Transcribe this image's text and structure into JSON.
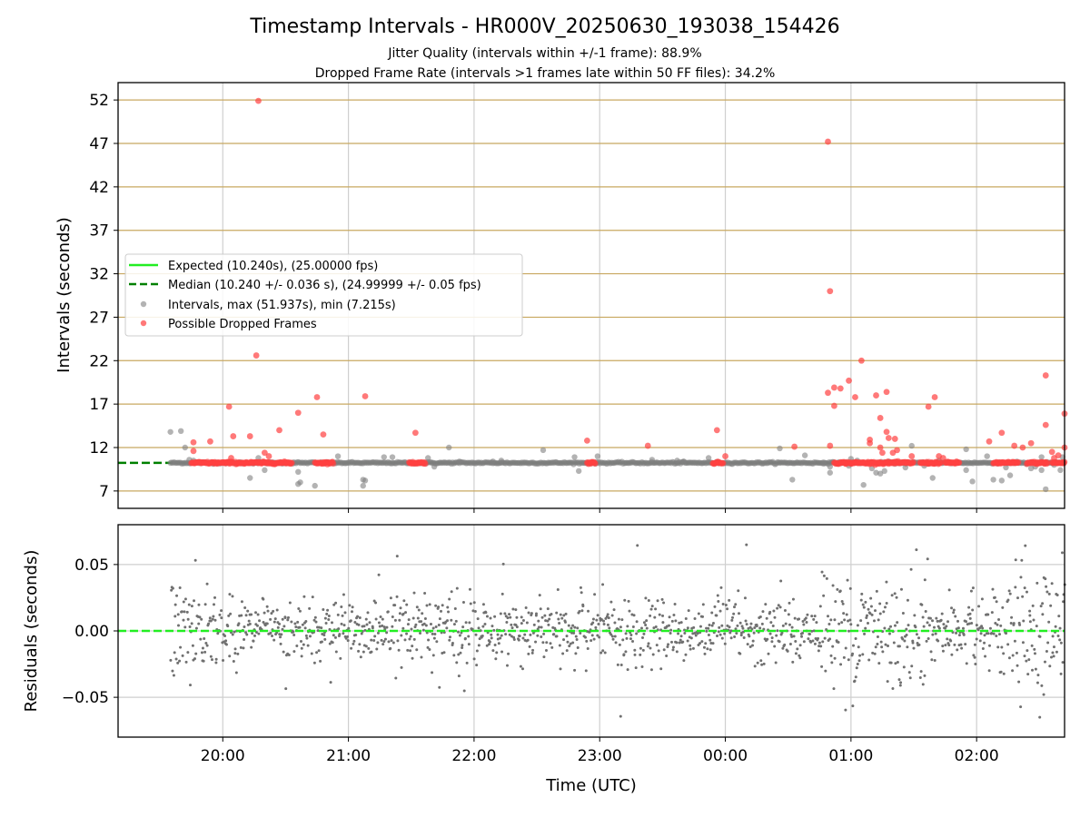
{
  "chart_data": [
    {
      "type": "scatter",
      "title": "Timestamp Intervals - HR000V_20250630_193038_154426",
      "subtitle_1": "Jitter Quality (intervals within +/-1 frame): 88.9%",
      "subtitle_2": "Dropped Frame Rate (intervals >1 frames late within 50 FF files): 34.2%",
      "ylabel": "Intervals (seconds)",
      "xlabel": "",
      "x_axis_type": "time",
      "xlim": [
        "19:10",
        "02:42"
      ],
      "ylim": [
        5,
        54
      ],
      "y_ticks": [
        "7",
        "12",
        "17",
        "22",
        "27",
        "32",
        "37",
        "42",
        "47",
        "52"
      ],
      "grid": {
        "horizontal": "on",
        "horizontal_color": "#c8a860",
        "vertical": "on"
      },
      "legend_position": "center-left",
      "legend": [
        "Expected (10.240s), (25.00000 fps)",
        "Median (10.240 +/- 0.036 s), (24.99999 +/- 0.05 fps)",
        "Intervals, max (51.937s), min (7.215s)",
        "Possible Dropped Frames"
      ],
      "expected_interval": 10.24,
      "median_interval": 10.24,
      "intervals_max": 51.937,
      "intervals_min": 7.215,
      "interval_points_range": [
        "19:35",
        "02:45"
      ],
      "series": [
        {
          "name": "Intervals, max (51.937s), min (7.215s)",
          "color": "#808080",
          "points": [
            [
              "19:35",
              13.8
            ],
            [
              "19:40",
              13.9
            ],
            [
              "19:42",
              12.0
            ],
            [
              "19:44",
              10.6
            ],
            [
              "19:46",
              10.5
            ],
            [
              "20:13",
              8.5
            ],
            [
              "20:17",
              10.8
            ],
            [
              "20:20",
              9.4
            ],
            [
              "20:36",
              7.8
            ],
            [
              "20:37",
              8.0
            ],
            [
              "20:36",
              9.2
            ],
            [
              "20:44",
              7.6
            ],
            [
              "20:55",
              11.0
            ],
            [
              "21:07",
              7.6
            ],
            [
              "21:07",
              8.3
            ],
            [
              "21:08",
              8.2
            ],
            [
              "21:17",
              10.9
            ],
            [
              "21:21",
              10.9
            ],
            [
              "21:38",
              10.8
            ],
            [
              "21:41",
              9.8
            ],
            [
              "21:48",
              12.0
            ],
            [
              "21:53",
              10.4
            ],
            [
              "22:09",
              10.4
            ],
            [
              "22:13",
              10.5
            ],
            [
              "22:33",
              11.7
            ],
            [
              "22:48",
              10.9
            ],
            [
              "22:50",
              9.3
            ],
            [
              "22:59",
              11.0
            ],
            [
              "23:25",
              10.6
            ],
            [
              "23:37",
              10.5
            ],
            [
              "23:40",
              10.4
            ],
            [
              "23:52",
              10.8
            ],
            [
              "23:56",
              10.3
            ],
            [
              "00:26",
              11.9
            ],
            [
              "00:32",
              8.3
            ],
            [
              "00:38",
              11.1
            ],
            [
              "00:47",
              10.3
            ],
            [
              "00:50",
              9.1
            ],
            [
              "00:50",
              9.8
            ],
            [
              "00:54",
              10.3
            ],
            [
              "00:59",
              9.9
            ],
            [
              "01:00",
              10.7
            ],
            [
              "01:03",
              10.5
            ],
            [
              "01:06",
              7.7
            ],
            [
              "01:10",
              9.6
            ],
            [
              "01:12",
              9.1
            ],
            [
              "01:14",
              9.0
            ],
            [
              "01:16",
              9.3
            ],
            [
              "01:18",
              10.4
            ],
            [
              "01:22",
              10.3
            ],
            [
              "01:26",
              9.7
            ],
            [
              "01:29",
              12.2
            ],
            [
              "01:35",
              9.9
            ],
            [
              "01:39",
              8.5
            ],
            [
              "01:42",
              10.5
            ],
            [
              "01:55",
              9.4
            ],
            [
              "01:55",
              11.8
            ],
            [
              "01:58",
              8.1
            ],
            [
              "02:05",
              11.0
            ],
            [
              "02:08",
              8.3
            ],
            [
              "02:12",
              8.2
            ],
            [
              "02:14",
              9.7
            ],
            [
              "02:16",
              8.8
            ],
            [
              "02:18",
              10.2
            ],
            [
              "02:24",
              10.1
            ],
            [
              "02:26",
              9.6
            ],
            [
              "02:28",
              9.8
            ],
            [
              "02:31",
              9.4
            ],
            [
              "02:31",
              10.9
            ],
            [
              "02:33",
              7.2
            ],
            [
              "02:37",
              10.0
            ],
            [
              "02:40",
              9.4
            ],
            [
              "02:41",
              10.9
            ]
          ]
        },
        {
          "name": "Possible Dropped Frames",
          "color": "#ff4040",
          "clusters": [
            [
              "19:45",
              "20:05"
            ],
            [
              "20:06",
              "20:33"
            ],
            [
              "20:44",
              "20:53"
            ],
            [
              "21:29",
              "21:37"
            ],
            [
              "22:54",
              "22:58"
            ],
            [
              "23:54",
              "23:59"
            ],
            [
              "00:52",
              "01:30"
            ],
            [
              "01:33",
              "01:43"
            ],
            [
              "01:45",
              "01:52"
            ],
            [
              "02:08",
              "02:20"
            ],
            [
              "02:24",
              "02:34"
            ],
            [
              "02:36",
              "02:42"
            ]
          ],
          "points": [
            [
              "19:46",
              11.6
            ],
            [
              "19:46",
              12.6
            ],
            [
              "19:54",
              12.7
            ],
            [
              "20:03",
              16.7
            ],
            [
              "20:04",
              10.8
            ],
            [
              "20:05",
              13.3
            ],
            [
              "20:13",
              13.3
            ],
            [
              "20:16",
              22.6
            ],
            [
              "20:17",
              51.9
            ],
            [
              "20:20",
              11.4
            ],
            [
              "20:22",
              11.0
            ],
            [
              "20:27",
              14.0
            ],
            [
              "20:36",
              16.0
            ],
            [
              "20:45",
              17.8
            ],
            [
              "20:48",
              13.5
            ],
            [
              "21:08",
              17.9
            ],
            [
              "21:32",
              13.7
            ],
            [
              "22:54",
              12.8
            ],
            [
              "23:23",
              12.2
            ],
            [
              "23:56",
              14.0
            ],
            [
              "00:00",
              11.0
            ],
            [
              "00:33",
              12.1
            ],
            [
              "00:49",
              47.2
            ],
            [
              "00:49",
              18.3
            ],
            [
              "00:50",
              12.2
            ],
            [
              "00:50",
              30.0
            ],
            [
              "00:52",
              18.9
            ],
            [
              "00:52",
              16.8
            ],
            [
              "00:55",
              18.8
            ],
            [
              "00:59",
              19.7
            ],
            [
              "01:02",
              17.8
            ],
            [
              "01:05",
              22.0
            ],
            [
              "01:09",
              12.9
            ],
            [
              "01:09",
              12.5
            ],
            [
              "01:12",
              18.0
            ],
            [
              "01:14",
              15.4
            ],
            [
              "01:14",
              12.0
            ],
            [
              "01:15",
              11.4
            ],
            [
              "01:17",
              18.4
            ],
            [
              "01:17",
              13.8
            ],
            [
              "01:18",
              13.1
            ],
            [
              "01:20",
              11.4
            ],
            [
              "01:21",
              13.0
            ],
            [
              "01:22",
              11.7
            ],
            [
              "01:29",
              11.0
            ],
            [
              "01:37",
              16.7
            ],
            [
              "01:40",
              17.8
            ],
            [
              "01:42",
              11.0
            ],
            [
              "01:44",
              10.8
            ],
            [
              "02:06",
              12.7
            ],
            [
              "02:12",
              13.7
            ],
            [
              "02:18",
              12.2
            ],
            [
              "02:22",
              12.0
            ],
            [
              "02:26",
              12.5
            ],
            [
              "02:33",
              20.3
            ],
            [
              "02:33",
              14.6
            ],
            [
              "02:36",
              11.5
            ],
            [
              "02:37",
              10.8
            ],
            [
              "02:39",
              11.1
            ],
            [
              "02:42",
              15.9
            ],
            [
              "02:42",
              12.0
            ]
          ]
        },
        {
          "name": "Expected (10.240s), (25.00000 fps)",
          "line": 10.24,
          "color": "#22ee22",
          "style": "solid"
        },
        {
          "name": "Median (10.240 +/- 0.036 s), (24.99999 +/- 0.05 fps)",
          "line": 10.24,
          "color": "#008000",
          "style": "dashed"
        }
      ]
    },
    {
      "type": "scatter",
      "ylabel": "Residuals (seconds)",
      "xlabel": "Time (UTC)",
      "x_axis_type": "time",
      "xlim": [
        "19:10",
        "02:42"
      ],
      "ylim": [
        -0.08,
        0.08
      ],
      "x_ticks": [
        "20:00",
        "21:00",
        "22:00",
        "23:00",
        "00:00",
        "01:00",
        "02:00"
      ],
      "y_ticks": [
        "0.05",
        "0.00",
        "−0.05"
      ],
      "grid": "on",
      "residual_points_range": [
        "19:35",
        "02:42"
      ],
      "series": [
        {
          "name": "",
          "color": "#707070",
          "approximate_count": 1400,
          "typical_spread": 0.012,
          "max_abs_shown": 0.08
        },
        {
          "name": "",
          "line": 0.0,
          "color": "#22ee22",
          "style": "dashed"
        }
      ]
    }
  ]
}
